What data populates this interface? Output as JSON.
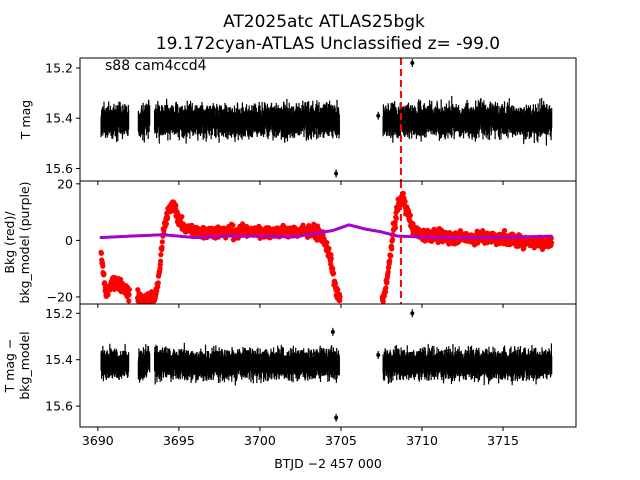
{
  "title": {
    "line1": "AT2025atc  ATLAS25bgk",
    "line2": "19.172cyan-ATLAS Unclassified z= -99.0"
  },
  "chart_data": [
    {
      "type": "scatter",
      "panel": "top",
      "ylabel": "T mag",
      "annotation": "s88 cam4ccd4",
      "xlim": [
        3688.9,
        3719.5
      ],
      "ylim": [
        15.65,
        15.16
      ],
      "y_inverted": true,
      "yticks": [
        15.2,
        15.4,
        15.6
      ],
      "ytick_labels": [
        "15.2",
        "15.4",
        "15.6"
      ],
      "series": [
        {
          "color": "#000000",
          "marker": "errorbar-point",
          "segments": [
            [
              3690.2,
              3691.9
            ],
            [
              3692.5,
              3693.2
            ],
            [
              3693.5,
              3704.9
            ],
            [
              3707.6,
              3718.0
            ]
          ],
          "median_y": 15.41,
          "scatter": 0.07,
          "error_bar": 0.04,
          "outliers": [
            [
              3709.4,
              15.18
            ],
            [
              3704.7,
              15.62
            ],
            [
              3707.3,
              15.39
            ]
          ]
        }
      ],
      "vline": {
        "x": 3708.7,
        "color": "#ff0000",
        "style": "dashed"
      }
    },
    {
      "type": "scatter",
      "panel": "middle",
      "ylabel": "Bkg (red)/\nbkg_model (purple)",
      "xlim": [
        3688.9,
        3719.5
      ],
      "ylim": [
        -22.5,
        21
      ],
      "yticks": [
        20,
        0,
        -20
      ],
      "ytick_labels": [
        "20",
        "0",
        "−20"
      ],
      "series": [
        {
          "color": "#ff0000",
          "marker": "dot",
          "x": [
            3690.2,
            3690.5,
            3691.0,
            3691.5,
            3691.9,
            3692.5,
            3692.8,
            3693.2,
            3693.5,
            3693.8,
            3694.0,
            3694.3,
            3694.7,
            3695.2,
            3696,
            3698,
            3700,
            3702,
            3703.5,
            3704.0,
            3704.4,
            3704.7,
            3704.9,
            3707.6,
            3707.9,
            3708.2,
            3708.5,
            3708.8,
            3709.1,
            3709.5,
            3710,
            3712,
            3714,
            3716,
            3718
          ],
          "y": [
            -5,
            -19,
            -14,
            -16,
            -19,
            -20,
            -21,
            -20,
            -21,
            -12,
            2,
            10,
            12,
            5,
            3,
            3,
            3,
            3,
            3,
            0,
            -8,
            -18,
            -21,
            -21,
            -12,
            2,
            12,
            16,
            10,
            3,
            2,
            1,
            1,
            0,
            -1
          ],
          "scatter": 3
        },
        {
          "color": "#aa00cc",
          "marker": "dot",
          "x": [
            3690.2,
            3692,
            3694,
            3696,
            3698,
            3700,
            3702,
            3703.5,
            3704.5,
            3705.5,
            3706.5,
            3707.5,
            3708.5,
            3710,
            3712,
            3714,
            3716,
            3718
          ],
          "y": [
            1,
            1.5,
            2,
            1,
            1.5,
            1.5,
            1.2,
            2.5,
            3.5,
            5.5,
            4,
            3,
            1.5,
            1.2,
            1,
            1,
            1.2,
            1.5
          ]
        }
      ],
      "vline": {
        "x": 3708.7,
        "color": "#ff0000",
        "style": "dashed"
      }
    },
    {
      "type": "scatter",
      "panel": "bottom",
      "ylabel": "T mag −\nbkg_model",
      "xlabel": "BTJD −2 457 000",
      "xlim": [
        3688.9,
        3719.5
      ],
      "ylim": [
        15.69,
        15.16
      ],
      "y_inverted": true,
      "yticks": [
        15.2,
        15.4,
        15.6
      ],
      "ytick_labels": [
        "15.2",
        "15.4",
        "15.6"
      ],
      "xticks": [
        3690,
        3695,
        3700,
        3705,
        3710,
        3715
      ],
      "xtick_labels": [
        "3690",
        "3695",
        "3700",
        "3705",
        "3710",
        "3715"
      ],
      "series": [
        {
          "color": "#000000",
          "marker": "errorbar-point",
          "segments": [
            [
              3690.2,
              3691.9
            ],
            [
              3692.5,
              3693.2
            ],
            [
              3693.5,
              3704.9
            ],
            [
              3707.6,
              3718.0
            ]
          ],
          "median_y": 15.42,
          "scatter": 0.07,
          "error_bar": 0.04,
          "outliers": [
            [
              3709.4,
              15.2
            ],
            [
              3704.7,
              15.65
            ],
            [
              3707.3,
              15.38
            ],
            [
              3704.5,
              15.28
            ]
          ]
        }
      ]
    }
  ]
}
